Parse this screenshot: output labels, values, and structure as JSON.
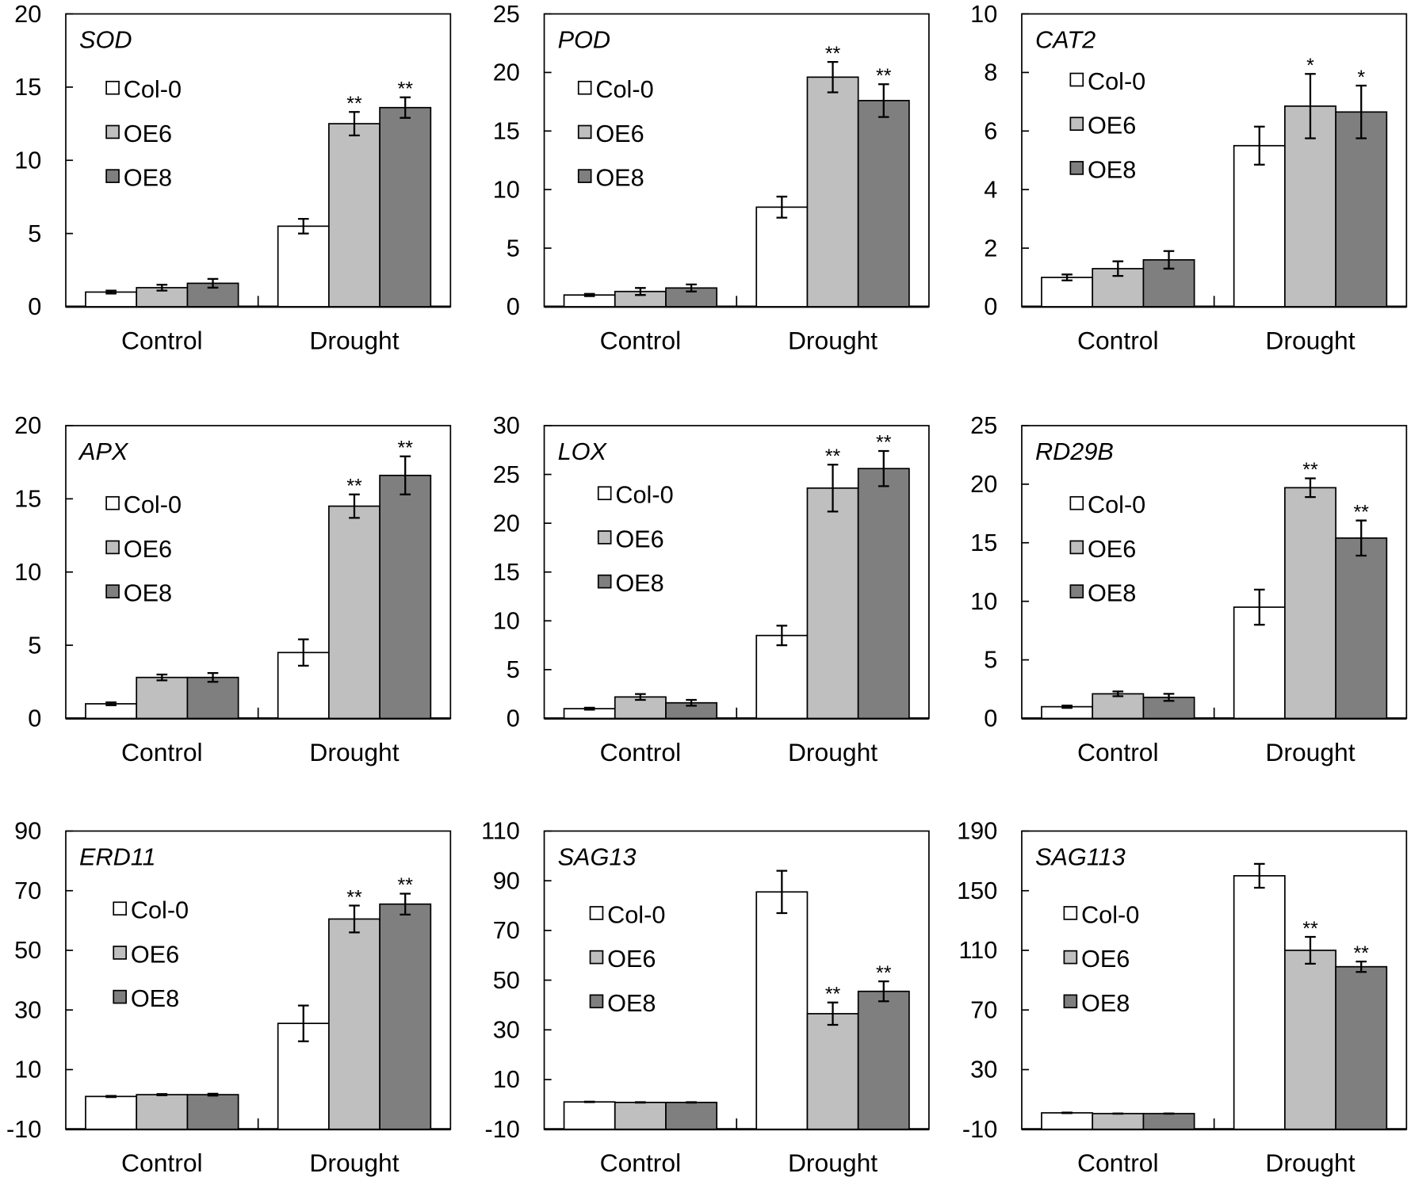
{
  "chart_data": [
    {
      "type": "bar",
      "title": "SOD",
      "categories": [
        "Control",
        "Drought"
      ],
      "ylim": [
        0,
        20
      ],
      "yticks": [
        0,
        5,
        10,
        15,
        20
      ],
      "legend_placement": "top-left",
      "series": [
        {
          "name": "Col-0",
          "values": [
            1.0,
            5.5
          ],
          "errors": [
            0.1,
            0.5
          ],
          "sig": [
            "",
            ""
          ]
        },
        {
          "name": "OE6",
          "values": [
            1.3,
            12.5
          ],
          "errors": [
            0.2,
            0.8
          ],
          "sig": [
            "",
            "**"
          ]
        },
        {
          "name": "OE8",
          "values": [
            1.6,
            13.6
          ],
          "errors": [
            0.3,
            0.7
          ],
          "sig": [
            "",
            "**"
          ]
        }
      ]
    },
    {
      "type": "bar",
      "title": "POD",
      "categories": [
        "Control",
        "Drought"
      ],
      "ylim": [
        0,
        25
      ],
      "yticks": [
        0,
        5,
        10,
        15,
        20,
        25
      ],
      "legend_placement": "top-left",
      "series": [
        {
          "name": "Col-0",
          "values": [
            1.0,
            8.5
          ],
          "errors": [
            0.1,
            0.9
          ],
          "sig": [
            "",
            ""
          ]
        },
        {
          "name": "OE6",
          "values": [
            1.3,
            19.6
          ],
          "errors": [
            0.3,
            1.3
          ],
          "sig": [
            "",
            "**"
          ]
        },
        {
          "name": "OE8",
          "values": [
            1.6,
            17.6
          ],
          "errors": [
            0.3,
            1.4
          ],
          "sig": [
            "",
            "**"
          ]
        }
      ]
    },
    {
      "type": "bar",
      "title": "CAT2",
      "categories": [
        "Control",
        "Drought"
      ],
      "ylim": [
        0,
        10
      ],
      "yticks": [
        0,
        2,
        4,
        6,
        8,
        10
      ],
      "legend_placement": "top-left",
      "series": [
        {
          "name": "Col-0",
          "values": [
            1.0,
            5.5
          ],
          "errors": [
            0.1,
            0.65
          ],
          "sig": [
            "",
            ""
          ]
        },
        {
          "name": "OE6",
          "values": [
            1.3,
            6.85
          ],
          "errors": [
            0.25,
            1.1
          ],
          "sig": [
            "",
            "*"
          ]
        },
        {
          "name": "OE8",
          "values": [
            1.6,
            6.65
          ],
          "errors": [
            0.3,
            0.9
          ],
          "sig": [
            "",
            "*"
          ]
        }
      ]
    },
    {
      "type": "bar",
      "title": "APX",
      "categories": [
        "Control",
        "Drought"
      ],
      "ylim": [
        0,
        20
      ],
      "yticks": [
        0,
        5,
        10,
        15,
        20
      ],
      "legend_placement": "top-left",
      "series": [
        {
          "name": "Col-0",
          "values": [
            1.0,
            4.5
          ],
          "errors": [
            0.1,
            0.9
          ],
          "sig": [
            "",
            ""
          ]
        },
        {
          "name": "OE6",
          "values": [
            2.8,
            14.5
          ],
          "errors": [
            0.2,
            0.8
          ],
          "sig": [
            "",
            "**"
          ]
        },
        {
          "name": "OE8",
          "values": [
            2.8,
            16.6
          ],
          "errors": [
            0.3,
            1.3
          ],
          "sig": [
            "",
            "**"
          ]
        }
      ]
    },
    {
      "type": "bar",
      "title": "LOX",
      "categories": [
        "Control",
        "Drought"
      ],
      "ylim": [
        0,
        30
      ],
      "yticks": [
        0,
        5,
        10,
        15,
        20,
        25,
        30
      ],
      "legend_placement": "top-left",
      "series": [
        {
          "name": "Col-0",
          "values": [
            1.0,
            8.5
          ],
          "errors": [
            0.1,
            1.0
          ],
          "sig": [
            "",
            ""
          ]
        },
        {
          "name": "OE6",
          "values": [
            2.2,
            23.6
          ],
          "errors": [
            0.3,
            2.4
          ],
          "sig": [
            "",
            "**"
          ]
        },
        {
          "name": "OE8",
          "values": [
            1.6,
            25.6
          ],
          "errors": [
            0.3,
            1.8
          ],
          "sig": [
            "",
            "**"
          ]
        }
      ]
    },
    {
      "type": "bar",
      "title": "RD29B",
      "categories": [
        "Control",
        "Drought"
      ],
      "ylim": [
        0,
        25
      ],
      "yticks": [
        0,
        5,
        10,
        15,
        20,
        25
      ],
      "legend_placement": "top-left",
      "series": [
        {
          "name": "Col-0",
          "values": [
            1.0,
            9.5
          ],
          "errors": [
            0.1,
            1.5
          ],
          "sig": [
            "",
            ""
          ]
        },
        {
          "name": "OE6",
          "values": [
            2.1,
            19.7
          ],
          "errors": [
            0.2,
            0.8
          ],
          "sig": [
            "",
            "**"
          ]
        },
        {
          "name": "OE8",
          "values": [
            1.8,
            15.4
          ],
          "errors": [
            0.3,
            1.5
          ],
          "sig": [
            "",
            "**"
          ]
        }
      ]
    },
    {
      "type": "bar",
      "title": "ERD11",
      "categories": [
        "Control",
        "Drought"
      ],
      "ylim": [
        -10,
        90
      ],
      "yticks": [
        -10,
        10,
        30,
        50,
        70,
        90
      ],
      "legend_placement": "top-left",
      "series": [
        {
          "name": "Col-0",
          "values": [
            1.0,
            25.5
          ],
          "errors": [
            0.2,
            6.0
          ],
          "sig": [
            "",
            ""
          ]
        },
        {
          "name": "OE6",
          "values": [
            1.6,
            60.5
          ],
          "errors": [
            0.2,
            4.5
          ],
          "sig": [
            "",
            "**"
          ]
        },
        {
          "name": "OE8",
          "values": [
            1.6,
            65.5
          ],
          "errors": [
            0.3,
            3.5
          ],
          "sig": [
            "",
            "**"
          ]
        }
      ]
    },
    {
      "type": "bar",
      "title": "SAG13",
      "categories": [
        "Control",
        "Drought"
      ],
      "ylim": [
        -10,
        110
      ],
      "yticks": [
        -10,
        10,
        30,
        50,
        70,
        90,
        110
      ],
      "legend_placement": "top-left",
      "series": [
        {
          "name": "Col-0",
          "values": [
            1.0,
            85.5
          ],
          "errors": [
            0.1,
            8.5
          ],
          "sig": [
            "",
            ""
          ]
        },
        {
          "name": "OE6",
          "values": [
            0.8,
            36.5
          ],
          "errors": [
            0.1,
            4.5
          ],
          "sig": [
            "",
            "**"
          ]
        },
        {
          "name": "OE8",
          "values": [
            0.8,
            45.5
          ],
          "errors": [
            0.1,
            4.0
          ],
          "sig": [
            "",
            "**"
          ]
        }
      ]
    },
    {
      "type": "bar",
      "title": "SAG113",
      "categories": [
        "Control",
        "Drought"
      ],
      "ylim": [
        -10,
        190
      ],
      "yticks": [
        -10,
        30,
        70,
        110,
        150,
        190
      ],
      "legend_placement": "top-left",
      "series": [
        {
          "name": "Col-0",
          "values": [
            1.0,
            160
          ],
          "errors": [
            0.2,
            8.0
          ],
          "sig": [
            "",
            ""
          ]
        },
        {
          "name": "OE6",
          "values": [
            0.5,
            110
          ],
          "errors": [
            0.1,
            9.0
          ],
          "sig": [
            "",
            "**"
          ]
        },
        {
          "name": "OE8",
          "values": [
            0.5,
            99
          ],
          "errors": [
            0.1,
            3.5
          ],
          "sig": [
            "",
            "**"
          ]
        }
      ]
    }
  ],
  "colors": {
    "Col-0": "#ffffff",
    "OE6": "#bfbfbf",
    "OE8": "#7f7f7f",
    "stroke": "#000000"
  }
}
